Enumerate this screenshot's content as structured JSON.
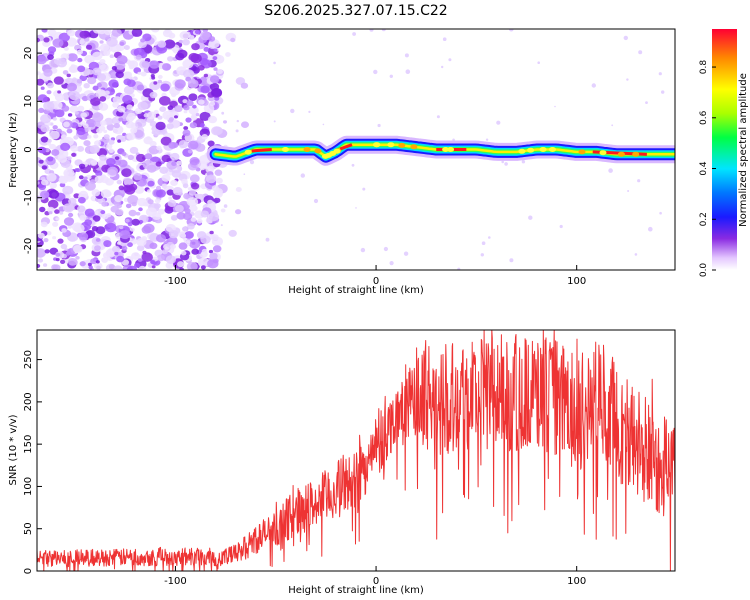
{
  "title": "S206.2025.327.07.15.C22",
  "chart_data": [
    {
      "type": "heatmap",
      "title": "S206.2025.327.07.15.C22",
      "xlabel": "Height of straight line (km)",
      "ylabel": "Frequency (Hz)",
      "xlim": [
        -169,
        149
      ],
      "ylim": [
        -25,
        25
      ],
      "xticks": [
        -100,
        0,
        100
      ],
      "yticks": [
        -20,
        -10,
        0,
        10,
        20
      ],
      "colorbar": {
        "label": "Normalized spectral amplitude",
        "range": [
          0,
          0.95
        ],
        "ticks": [
          "0.0",
          "0.2",
          "0.4",
          "0.6",
          "0.8"
        ]
      },
      "noise_region_x": [
        -169,
        -78
      ],
      "ridge": {
        "x": [
          -80,
          -70,
          -60,
          -50,
          -40,
          -30,
          -25,
          -20,
          -15,
          -10,
          0,
          10,
          20,
          30,
          40,
          50,
          60,
          70,
          80,
          90,
          100,
          110,
          120,
          130,
          140,
          149
        ],
        "freq": [
          -1.0,
          -1.5,
          0.0,
          0.0,
          0.0,
          0.0,
          -1.5,
          -0.5,
          1.0,
          1.0,
          1.0,
          1.0,
          0.5,
          0.0,
          0.0,
          0.0,
          -0.5,
          -0.5,
          0.0,
          0.0,
          -0.5,
          -0.5,
          -1.0,
          -1.0,
          -1.0,
          -1.0
        ]
      }
    },
    {
      "type": "line",
      "xlabel": "Height of straight line (km)",
      "ylabel": "SNR (10 * v/v)",
      "xlim": [
        -169,
        149
      ],
      "ylim": [
        0,
        285
      ],
      "xticks": [
        -100,
        0,
        100
      ],
      "yticks": [
        0,
        50,
        100,
        150,
        200,
        250
      ],
      "series": [
        {
          "name": "SNR",
          "color": "#ee3333",
          "x": [
            -169,
            -150,
            -130,
            -110,
            -90,
            -75,
            -70,
            -65,
            -60,
            -50,
            -40,
            -30,
            -20,
            -10,
            0,
            10,
            20,
            25,
            30,
            40,
            50,
            60,
            70,
            80,
            90,
            100,
            105,
            110,
            115,
            120,
            130,
            140,
            149
          ],
          "mean": [
            15,
            15,
            16,
            17,
            17,
            16,
            20,
            28,
            38,
            50,
            70,
            80,
            95,
            110,
            140,
            185,
            200,
            210,
            205,
            210,
            212,
            212,
            210,
            208,
            205,
            185,
            190,
            205,
            200,
            175,
            150,
            130,
            120
          ],
          "spread": [
            10,
            10,
            10,
            11,
            11,
            11,
            12,
            14,
            18,
            22,
            28,
            30,
            35,
            35,
            35,
            35,
            55,
            65,
            70,
            70,
            70,
            70,
            70,
            70,
            70,
            70,
            70,
            70,
            70,
            70,
            70,
            65,
            60
          ]
        }
      ]
    }
  ]
}
